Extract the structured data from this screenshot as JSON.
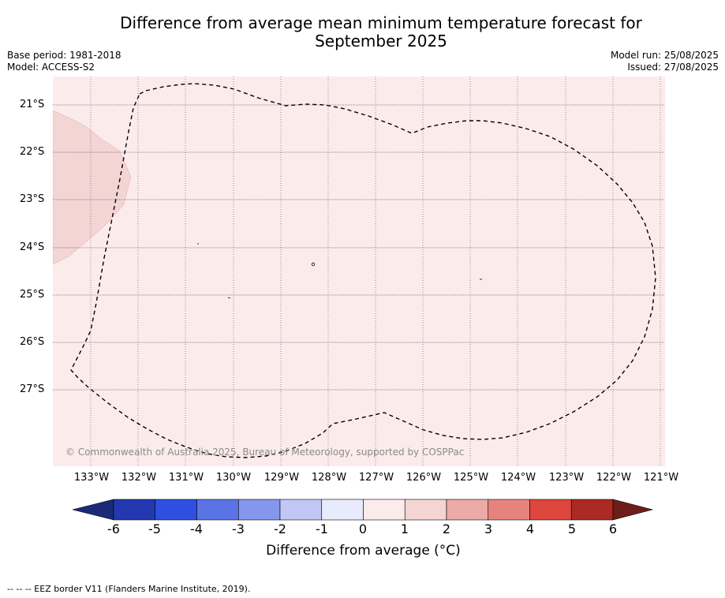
{
  "title_line1": "Difference from average mean minimum temperature forecast for",
  "title_line2": "September 2025",
  "meta_left": {
    "base_period": "Base period: 1981-2018",
    "model": "Model: ACCESS-S2"
  },
  "meta_right": {
    "model_run": "Model run: 25/08/2025",
    "issued": "Issued: 27/08/2025"
  },
  "map": {
    "copyright": "© Commonwealth of Australia 2025, Bureau of Meteorology, supported by COSPPac",
    "lat_labels": [
      "21°S",
      "22°S",
      "23°S",
      "24°S",
      "25°S",
      "26°S",
      "27°S"
    ],
    "lon_labels": [
      "133°W",
      "132°W",
      "131°W",
      "130°W",
      "129°W",
      "128°W",
      "127°W",
      "126°W",
      "125°W",
      "124°W",
      "123°W",
      "122°W",
      "121°W"
    ],
    "background_anomaly_class": "0 to 1",
    "background_color": "#fbeceb",
    "patch_anomaly_class": "1 to 2",
    "patch_color": "#f3d5d4",
    "eez_border_style": "dashed black"
  },
  "colorbar": {
    "ticks": [
      "-6",
      "-5",
      "-4",
      "-3",
      "-2",
      "-1",
      "0",
      "1",
      "2",
      "3",
      "4",
      "5",
      "6"
    ],
    "colors": [
      "#1a2a78",
      "#2338b0",
      "#2f4fe0",
      "#5a74e6",
      "#8497ec",
      "#c1c8f5",
      "#e8ebfb",
      "#fbeceb",
      "#f3d5d4",
      "#edaaa6",
      "#e7837d",
      "#dc463d",
      "#ad2a24",
      "#6f1d1a"
    ],
    "label": "Difference from average (°C)"
  },
  "footer": "--  --  -- EEZ border V11 (Flanders Marine Institute, 2019)."
}
